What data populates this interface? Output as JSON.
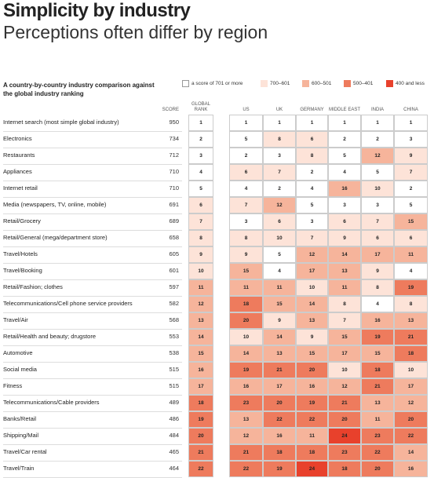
{
  "header": {
    "title": "Simplicity by industry",
    "subtitle": "Perceptions often differ by region"
  },
  "intro": "A country-by-country industry comparison against the global industry ranking",
  "legend": [
    {
      "label": "a score of 701 or more",
      "color": "#ffffff"
    },
    {
      "label": "700–601",
      "color": "#fde3d8"
    },
    {
      "label": "600–501",
      "color": "#f6b49b"
    },
    {
      "label": "500–401",
      "color": "#ee7b5d"
    },
    {
      "label": "400 and less",
      "color": "#e8412c"
    }
  ],
  "table": {
    "columns": [
      "SCORE",
      "GLOBAL RANK",
      "US",
      "UK",
      "GERMANY",
      "MIDDLE EAST",
      "INDIA",
      "CHINA"
    ],
    "rows": [
      {
        "industry": "Internet search (most simple global industry)",
        "score": 950,
        "ranks": [
          1,
          1,
          1,
          1,
          1,
          1,
          1
        ],
        "colors": [
          "#ffffff",
          "#ffffff",
          "#ffffff",
          "#ffffff",
          "#ffffff",
          "#ffffff",
          "#ffffff"
        ]
      },
      {
        "industry": "Electronics",
        "score": 734,
        "ranks": [
          2,
          5,
          8,
          6,
          2,
          2,
          3
        ],
        "colors": [
          "#ffffff",
          "#ffffff",
          "#fde3d8",
          "#fde3d8",
          "#ffffff",
          "#ffffff",
          "#ffffff"
        ]
      },
      {
        "industry": "Restaurants",
        "score": 712,
        "ranks": [
          3,
          2,
          3,
          8,
          5,
          12,
          9
        ],
        "colors": [
          "#ffffff",
          "#ffffff",
          "#ffffff",
          "#fde3d8",
          "#ffffff",
          "#f6b49b",
          "#fde3d8"
        ]
      },
      {
        "industry": "Appliances",
        "score": 710,
        "ranks": [
          4,
          6,
          7,
          2,
          4,
          5,
          7
        ],
        "colors": [
          "#ffffff",
          "#fde3d8",
          "#fde3d8",
          "#ffffff",
          "#ffffff",
          "#ffffff",
          "#fde3d8"
        ]
      },
      {
        "industry": "Internet retail",
        "score": 710,
        "ranks": [
          5,
          4,
          2,
          4,
          16,
          10,
          2
        ],
        "colors": [
          "#ffffff",
          "#ffffff",
          "#ffffff",
          "#ffffff",
          "#f6b49b",
          "#fde3d8",
          "#ffffff"
        ]
      },
      {
        "industry": "Media (newspapers, TV, online, mobile)",
        "score": 691,
        "ranks": [
          6,
          7,
          12,
          5,
          3,
          3,
          5
        ],
        "colors": [
          "#fde3d8",
          "#fde3d8",
          "#f6b49b",
          "#ffffff",
          "#ffffff",
          "#ffffff",
          "#ffffff"
        ]
      },
      {
        "industry": "Retail/Grocery",
        "score": 689,
        "ranks": [
          7,
          3,
          6,
          3,
          6,
          7,
          15
        ],
        "colors": [
          "#fde3d8",
          "#ffffff",
          "#fde3d8",
          "#ffffff",
          "#fde3d8",
          "#fde3d8",
          "#f6b49b"
        ]
      },
      {
        "industry": "Retail/General (mega/department store)",
        "score": 658,
        "ranks": [
          8,
          8,
          10,
          7,
          9,
          6,
          6
        ],
        "colors": [
          "#fde3d8",
          "#fde3d8",
          "#fde3d8",
          "#fde3d8",
          "#fde3d8",
          "#fde3d8",
          "#fde3d8"
        ]
      },
      {
        "industry": "Travel/Hotels",
        "score": 605,
        "ranks": [
          9,
          9,
          5,
          12,
          14,
          17,
          11
        ],
        "colors": [
          "#fde3d8",
          "#fde3d8",
          "#ffffff",
          "#f6b49b",
          "#f6b49b",
          "#f6b49b",
          "#f6b49b"
        ]
      },
      {
        "industry": "Travel/Booking",
        "score": 601,
        "ranks": [
          10,
          15,
          4,
          17,
          13,
          9,
          4
        ],
        "colors": [
          "#fde3d8",
          "#f6b49b",
          "#ffffff",
          "#f6b49b",
          "#f6b49b",
          "#fde3d8",
          "#ffffff"
        ]
      },
      {
        "industry": "Retail/Fashion; clothes",
        "score": 597,
        "ranks": [
          11,
          11,
          11,
          10,
          11,
          8,
          19
        ],
        "colors": [
          "#f6b49b",
          "#f6b49b",
          "#f6b49b",
          "#fde3d8",
          "#f6b49b",
          "#fde3d8",
          "#ee7b5d"
        ]
      },
      {
        "industry": "Telecommunications/Cell phone service providers",
        "score": 582,
        "ranks": [
          12,
          18,
          15,
          14,
          8,
          4,
          8
        ],
        "colors": [
          "#f6b49b",
          "#ee7b5d",
          "#f6b49b",
          "#f6b49b",
          "#fde3d8",
          "#ffffff",
          "#fde3d8"
        ]
      },
      {
        "industry": "Travel/Air",
        "score": 568,
        "ranks": [
          13,
          20,
          9,
          13,
          7,
          16,
          13
        ],
        "colors": [
          "#f6b49b",
          "#ee7b5d",
          "#fde3d8",
          "#f6b49b",
          "#fde3d8",
          "#f6b49b",
          "#f6b49b"
        ]
      },
      {
        "industry": "Retail/Health and beauty; drugstore",
        "score": 553,
        "ranks": [
          14,
          10,
          14,
          9,
          15,
          19,
          21
        ],
        "colors": [
          "#f6b49b",
          "#fde3d8",
          "#f6b49b",
          "#fde3d8",
          "#f6b49b",
          "#ee7b5d",
          "#ee7b5d"
        ]
      },
      {
        "industry": "Automotive",
        "score": 538,
        "ranks": [
          15,
          14,
          13,
          15,
          17,
          15,
          18
        ],
        "colors": [
          "#f6b49b",
          "#f6b49b",
          "#f6b49b",
          "#f6b49b",
          "#f6b49b",
          "#f6b49b",
          "#ee7b5d"
        ]
      },
      {
        "industry": "Social media",
        "score": 515,
        "ranks": [
          16,
          19,
          21,
          20,
          10,
          18,
          10
        ],
        "colors": [
          "#f6b49b",
          "#ee7b5d",
          "#ee7b5d",
          "#ee7b5d",
          "#fde3d8",
          "#ee7b5d",
          "#fde3d8"
        ]
      },
      {
        "industry": "Fitness",
        "score": 515,
        "ranks": [
          17,
          16,
          17,
          16,
          12,
          21,
          17
        ],
        "colors": [
          "#f6b49b",
          "#f6b49b",
          "#f6b49b",
          "#f6b49b",
          "#f6b49b",
          "#ee7b5d",
          "#f6b49b"
        ]
      },
      {
        "industry": "Telecommunications/Cable providers",
        "score": 489,
        "ranks": [
          18,
          23,
          20,
          19,
          21,
          13,
          12
        ],
        "colors": [
          "#ee7b5d",
          "#ee7b5d",
          "#ee7b5d",
          "#ee7b5d",
          "#ee7b5d",
          "#f6b49b",
          "#f6b49b"
        ]
      },
      {
        "industry": "Banks/Retail",
        "score": 486,
        "ranks": [
          19,
          13,
          22,
          22,
          20,
          11,
          20
        ],
        "colors": [
          "#ee7b5d",
          "#f6b49b",
          "#ee7b5d",
          "#ee7b5d",
          "#ee7b5d",
          "#f6b49b",
          "#ee7b5d"
        ]
      },
      {
        "industry": "Shipping/Mail",
        "score": 484,
        "ranks": [
          20,
          12,
          16,
          11,
          24,
          23,
          22
        ],
        "colors": [
          "#ee7b5d",
          "#f6b49b",
          "#f6b49b",
          "#f6b49b",
          "#e8412c",
          "#ee7b5d",
          "#ee7b5d"
        ]
      },
      {
        "industry": "Travel/Car rental",
        "score": 465,
        "ranks": [
          21,
          21,
          18,
          18,
          23,
          22,
          14
        ],
        "colors": [
          "#ee7b5d",
          "#ee7b5d",
          "#ee7b5d",
          "#ee7b5d",
          "#ee7b5d",
          "#ee7b5d",
          "#f6b49b"
        ]
      },
      {
        "industry": "Travel/Train",
        "score": 464,
        "ranks": [
          22,
          22,
          19,
          24,
          18,
          20,
          16
        ],
        "colors": [
          "#ee7b5d",
          "#ee7b5d",
          "#ee7b5d",
          "#e8412c",
          "#ee7b5d",
          "#ee7b5d",
          "#f6b49b"
        ]
      }
    ]
  }
}
